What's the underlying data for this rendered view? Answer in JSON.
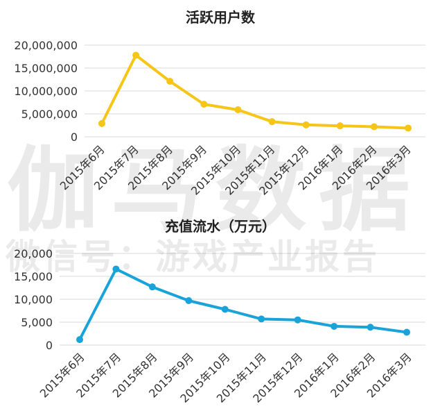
{
  "watermark": {
    "brand": "伽马数据",
    "subtitle": "微信号：游戏产业报告"
  },
  "colors": {
    "users_line": "#F5C518",
    "revenue_line": "#1AA3D9",
    "grid": "#D9D9D9",
    "axis_text": "#333333",
    "title_text": "#222222"
  },
  "chart_data": [
    {
      "type": "line",
      "title": "活跃用户数",
      "categories": [
        "2015年6月",
        "2015年7月",
        "2015年8月",
        "2015年9月",
        "2015年10月",
        "2015年11月",
        "2015年12月",
        "2016年1月",
        "2016年2月",
        "2016年3月"
      ],
      "values": [
        2900000,
        17800000,
        12100000,
        7100000,
        5900000,
        3300000,
        2600000,
        2400000,
        2200000,
        1900000
      ],
      "ylim": [
        0,
        20000000
      ],
      "yticks": [
        0,
        5000000,
        10000000,
        15000000,
        20000000
      ],
      "ytick_labels": [
        "0",
        "5,000,000",
        "10,000,000",
        "15,000,000",
        "20,000,000"
      ],
      "grid": true
    },
    {
      "type": "line",
      "title": "充值流水（万元）",
      "categories": [
        "2015年6月",
        "2015年7月",
        "2015年8月",
        "2015年9月",
        "2015年10月",
        "2015年11月",
        "2015年12月",
        "2016年1月",
        "2016年2月",
        "2016年3月"
      ],
      "values": [
        1200,
        16600,
        12700,
        9700,
        7800,
        5700,
        5500,
        4100,
        3900,
        2800
      ],
      "ylim": [
        0,
        20000
      ],
      "yticks": [
        0,
        5000,
        10000,
        15000,
        20000
      ],
      "ytick_labels": [
        "0",
        "5,000",
        "10,000",
        "15,000",
        "20,000"
      ],
      "grid": true
    }
  ]
}
